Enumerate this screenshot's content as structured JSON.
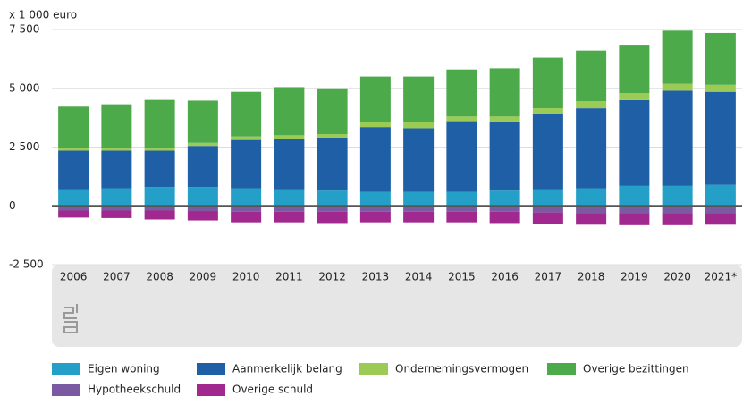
{
  "chart_data": {
    "type": "bar",
    "stacked": true,
    "y_label": "x 1 000 euro",
    "categories": [
      "2006",
      "2007",
      "2008",
      "2009",
      "2010",
      "2011",
      "2012",
      "2013",
      "2014",
      "2015",
      "2016",
      "2017",
      "2018",
      "2019",
      "2020",
      "2021*"
    ],
    "series": [
      {
        "name": "Eigen woning",
        "color": "#24a0c8",
        "values": [
          700,
          750,
          800,
          800,
          750,
          700,
          650,
          600,
          600,
          600,
          650,
          700,
          750,
          850,
          850,
          900
        ]
      },
      {
        "name": "Aanmerkelijk belang",
        "color": "#1f5fa6",
        "values": [
          1650,
          1600,
          1550,
          1750,
          2050,
          2150,
          2250,
          2750,
          2700,
          3000,
          2900,
          3200,
          3400,
          3650,
          4050,
          3950
        ]
      },
      {
        "name": "Ondernemingsvermogen",
        "color": "#9ccb55",
        "values": [
          100,
          100,
          130,
          130,
          150,
          150,
          150,
          200,
          250,
          200,
          250,
          250,
          300,
          300,
          300,
          300
        ]
      },
      {
        "name": "Overige bezittingen",
        "color": "#4caa4a",
        "values": [
          1770,
          1870,
          2030,
          1800,
          1900,
          2050,
          1950,
          1950,
          1950,
          2000,
          2050,
          2150,
          2150,
          2050,
          2250,
          2200
        ]
      },
      {
        "name": "Hypotheekschuld",
        "color": "#7a5aa0",
        "values": [
          -200,
          -200,
          -200,
          -220,
          -250,
          -250,
          -250,
          -250,
          -250,
          -250,
          -250,
          -280,
          -300,
          -300,
          -300,
          -300
        ]
      },
      {
        "name": "Overige schuld",
        "color": "#a0288f",
        "values": [
          -300,
          -320,
          -380,
          -400,
          -450,
          -450,
          -480,
          -450,
          -450,
          -450,
          -480,
          -480,
          -500,
          -520,
          -520,
          -500
        ]
      }
    ],
    "ylim": [
      -2500,
      7500
    ],
    "yticks": [
      {
        "value": -2500,
        "label": "-2 500"
      },
      0,
      {
        "value": 2500,
        "label": "2 500"
      },
      {
        "value": 5000,
        "label": "5 000"
      },
      {
        "value": 7500,
        "label": "7 500"
      }
    ],
    "grid": true
  }
}
